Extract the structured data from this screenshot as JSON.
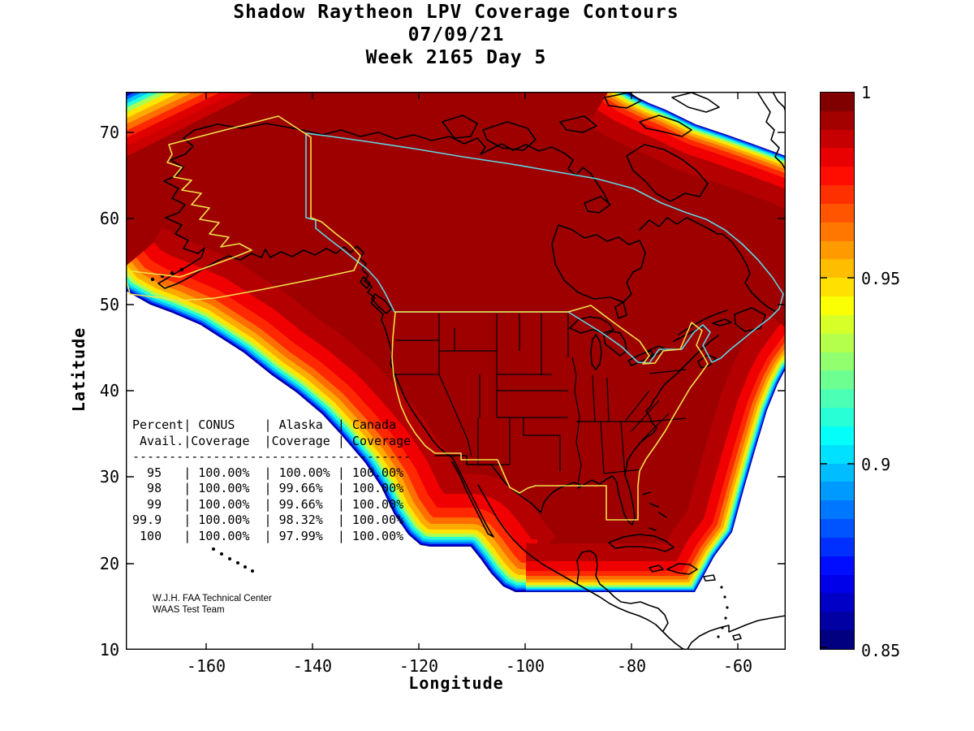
{
  "title": {
    "line1": "Shadow Raytheon LPV Coverage Contours",
    "line2": "07/09/21",
    "line3": "Week 2165 Day 5"
  },
  "axes": {
    "x": {
      "label": "Longitude",
      "ticks": [
        {
          "label": "-160"
        },
        {
          "label": "-140"
        },
        {
          "label": "-120"
        },
        {
          "label": "-100"
        },
        {
          "label": "-80"
        },
        {
          "label": "-60"
        }
      ]
    },
    "y": {
      "label": "Latitude",
      "ticks": [
        {
          "label": "70"
        },
        {
          "label": "60"
        },
        {
          "label": "50"
        },
        {
          "label": "40"
        },
        {
          "label": "30"
        },
        {
          "label": "20"
        },
        {
          "label": "10"
        }
      ]
    }
  },
  "colorbar": {
    "colormap": "jet",
    "min": 0.85,
    "max": 1,
    "steps": 30,
    "ticks": [
      {
        "label": "1"
      },
      {
        "label": "0.95"
      },
      {
        "label": "0.9"
      },
      {
        "label": "0.85"
      }
    ]
  },
  "coverage_table": {
    "header_line1": "Percent| CONUS    | Alaska  | Canada",
    "header_line2": " Avail.|Coverage  |Coverage | Coverage",
    "rows": [
      {
        "percent": "95",
        "conus": "100.00%",
        "alaska": "100.00%",
        "canada": "100.00%"
      },
      {
        "percent": "98",
        "conus": "100.00%",
        "alaska": "99.66%",
        "canada": "100.00%"
      },
      {
        "percent": "99",
        "conus": "100.00%",
        "alaska": "99.66%",
        "canada": "100.00%"
      },
      {
        "percent": "99.9",
        "conus": "100.00%",
        "alaska": "98.32%",
        "canada": "100.00%"
      },
      {
        "percent": "100",
        "conus": "100.00%",
        "alaska": "97.99%",
        "canada": "100.00%"
      }
    ]
  },
  "credit": {
    "line1": "W.J.H. FAA Technical Center",
    "line2": "WAAS Test Team"
  },
  "map": {
    "regions": [
      "CONUS",
      "Alaska",
      "Canada"
    ],
    "colors": {
      "coverage_interior": "#9E0000",
      "no_coverage": "#FFFFFF",
      "coastline": "#000000",
      "conus_alaska_boundary": "#F0E14B",
      "canada_boundary": "#5FD7E6"
    }
  },
  "chart_data": {
    "type": "heatmap",
    "title": "Shadow Raytheon LPV Coverage Contours 07/09/21 Week 2165 Day 5",
    "xlabel": "Longitude",
    "ylabel": "Latitude",
    "xlim": [
      -175,
      -51
    ],
    "ylim": [
      10,
      75
    ],
    "colorbar_range": [
      0.85,
      1
    ],
    "colorbar_tick_values": [
      1,
      0.95,
      0.9,
      0.85
    ],
    "description": "LPV availability coverage contours over North America; deep red interior = availability 1.0, jet-colormap fringe bands down to 0.85 at coverage edges, white = below scale.",
    "series": [
      {
        "name": "CONUS Coverage",
        "x": [
          95,
          98,
          99,
          99.9,
          100
        ],
        "values": [
          100.0,
          100.0,
          100.0,
          100.0,
          100.0
        ]
      },
      {
        "name": "Alaska Coverage",
        "x": [
          95,
          98,
          99,
          99.9,
          100
        ],
        "values": [
          100.0,
          99.66,
          99.66,
          98.32,
          97.99
        ]
      },
      {
        "name": "Canada Coverage",
        "x": [
          95,
          98,
          99,
          99.9,
          100
        ],
        "values": [
          100.0,
          100.0,
          100.0,
          100.0,
          100.0
        ]
      }
    ]
  }
}
